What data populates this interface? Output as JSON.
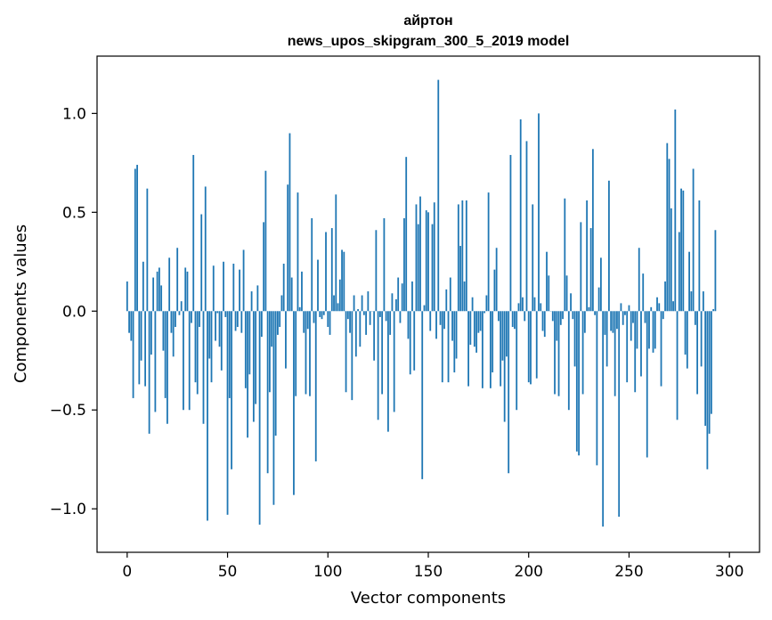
{
  "chart_data": {
    "type": "bar",
    "title": "айртон",
    "subtitle": "news_upos_skipgram_300_5_2019 model",
    "xlabel": "Vector components",
    "ylabel": "Components values",
    "xlim": [
      -15,
      315
    ],
    "ylim": [
      -1.22,
      1.29
    ],
    "xticks": [
      0,
      50,
      100,
      150,
      200,
      250,
      300
    ],
    "xtick_labels": [
      "0",
      "50",
      "100",
      "150",
      "200",
      "250",
      "300"
    ],
    "yticks": [
      -1.0,
      -0.5,
      0.0,
      0.5,
      1.0
    ],
    "ytick_labels": [
      "−1.0",
      "−0.5",
      "0.0",
      "0.5",
      "1.0"
    ],
    "grid": false,
    "bar_color": "#1f77b4",
    "values": [
      0.15,
      -0.11,
      -0.15,
      -0.44,
      0.72,
      0.74,
      -0.37,
      -0.25,
      0.25,
      -0.38,
      0.62,
      -0.62,
      -0.22,
      0.17,
      -0.51,
      0.2,
      0.22,
      0.13,
      -0.2,
      -0.44,
      -0.57,
      0.27,
      -0.11,
      -0.23,
      -0.08,
      0.32,
      -0.02,
      0.05,
      -0.5,
      0.22,
      0.2,
      -0.5,
      -0.06,
      0.79,
      -0.36,
      -0.42,
      -0.08,
      0.49,
      -0.57,
      0.63,
      -1.06,
      -0.24,
      -0.36,
      0.23,
      -0.15,
      -0.01,
      -0.18,
      -0.3,
      0.25,
      -0.03,
      -1.03,
      -0.44,
      -0.8,
      0.24,
      -0.1,
      -0.08,
      0.21,
      -0.11,
      0.31,
      -0.39,
      -0.64,
      -0.32,
      0.1,
      -0.56,
      -0.47,
      0.13,
      -1.08,
      -0.13,
      0.45,
      0.71,
      -0.82,
      -0.41,
      -0.18,
      -0.98,
      -0.63,
      -0.12,
      -0.08,
      0.08,
      0.24,
      -0.29,
      0.64,
      0.9,
      0.17,
      -0.93,
      -0.43,
      0.6,
      0.02,
      0.2,
      -0.11,
      -0.42,
      -0.09,
      -0.43,
      0.47,
      -0.06,
      -0.76,
      0.26,
      -0.03,
      -0.04,
      -0.02,
      0.4,
      -0.08,
      -0.12,
      0.42,
      0.08,
      0.59,
      0.04,
      0.16,
      0.31,
      0.3,
      -0.41,
      -0.04,
      -0.11,
      -0.45,
      0.08,
      -0.23,
      0.01,
      -0.18,
      0.08,
      -0.02,
      -0.12,
      0.1,
      -0.07,
      0.0,
      -0.25,
      0.41,
      -0.55,
      -0.03,
      -0.42,
      0.47,
      -0.05,
      -0.61,
      -0.12,
      0.09,
      -0.51,
      0.06,
      0.17,
      -0.06,
      0.14,
      0.47,
      0.78,
      -0.14,
      -0.32,
      0.15,
      -0.3,
      0.54,
      0.44,
      0.58,
      -0.85,
      0.03,
      0.51,
      0.5,
      -0.1,
      0.44,
      0.55,
      -0.14,
      1.17,
      -0.07,
      -0.36,
      -0.09,
      0.11,
      -0.36,
      0.17,
      -0.15,
      -0.31,
      -0.24,
      0.54,
      0.33,
      0.56,
      0.15,
      0.56,
      -0.38,
      -0.17,
      0.07,
      -0.18,
      -0.21,
      -0.11,
      -0.1,
      -0.39,
      -0.01,
      0.08,
      0.6,
      -0.39,
      -0.31,
      0.21,
      0.32,
      -0.05,
      -0.38,
      -0.25,
      -0.56,
      -0.23,
      -0.82,
      0.79,
      -0.08,
      -0.09,
      -0.5,
      0.04,
      0.97,
      0.07,
      -0.05,
      0.86,
      -0.36,
      -0.37,
      0.54,
      0.07,
      -0.34,
      1.0,
      0.04,
      -0.1,
      -0.13,
      0.3,
      0.18,
      0.0,
      -0.05,
      -0.42,
      -0.15,
      -0.43,
      -0.07,
      -0.04,
      0.57,
      0.18,
      -0.5,
      0.09,
      -0.04,
      -0.28,
      -0.71,
      -0.73,
      0.45,
      -0.42,
      -0.11,
      0.56,
      0.02,
      0.42,
      0.82,
      -0.02,
      -0.78,
      0.12,
      0.27,
      -1.09,
      -0.12,
      -0.28,
      0.66,
      -0.1,
      -0.11,
      -0.43,
      -0.09,
      -1.04,
      0.04,
      -0.07,
      -0.02,
      -0.36,
      0.03,
      -0.15,
      -0.06,
      -0.41,
      -0.19,
      0.32,
      -0.33,
      0.19,
      -0.06,
      -0.74,
      -0.19,
      0.02,
      -0.21,
      -0.19,
      0.07,
      0.04,
      -0.38,
      -0.04,
      0.15,
      0.85,
      0.77,
      0.52,
      0.05,
      1.02,
      -0.55,
      0.4,
      0.62,
      0.61,
      -0.22,
      -0.29,
      0.3,
      0.1,
      0.72,
      -0.07,
      -0.42,
      0.56,
      -0.28,
      0.1,
      -0.58,
      -0.8,
      -0.62,
      -0.52,
      0.01,
      0.41
    ]
  }
}
